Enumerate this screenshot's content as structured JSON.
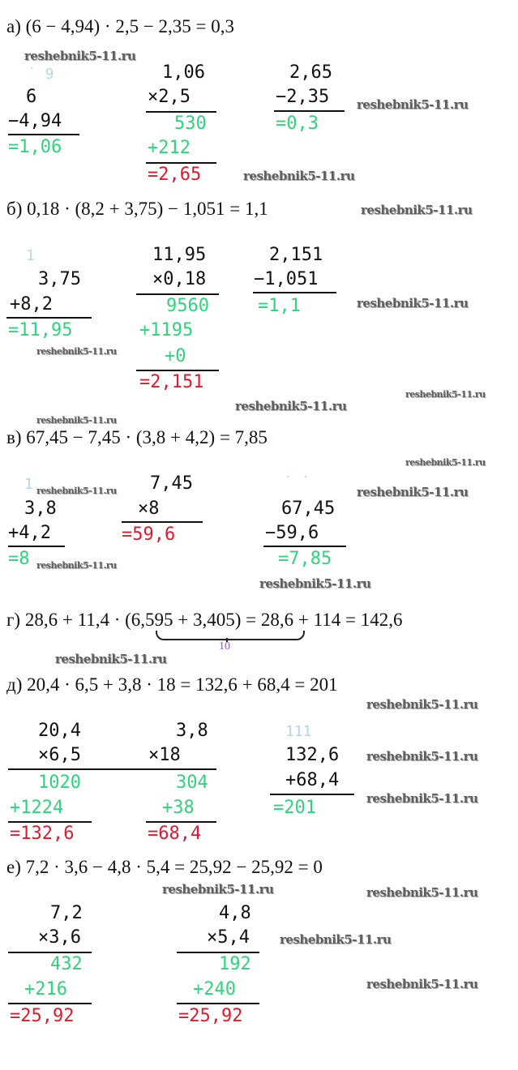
{
  "watermark": "reshebnik5-11.ru",
  "colors": {
    "text": "#111111",
    "intermediate": "#2fd47c",
    "result": "#e01a2e",
    "carry": "#b5d6ea",
    "annotation": "#a050c0"
  },
  "a": {
    "heading": "а) (6 − 4,94) · 2,5 − 2,35 = 0,3",
    "c1": [
      "˙ 9",
      "6",
      "−4,94",
      "=1,06"
    ],
    "c2": [
      "1,06",
      "×2,5",
      "530",
      "+212",
      "=2,65"
    ],
    "c3": [
      "2,65",
      "−2,35",
      "=0,3"
    ]
  },
  "b": {
    "heading": "б) 0,18 · (8,2 + 3,75) − 1,051 = 1,1",
    "c1": [
      "1",
      "3,75",
      "+8,2",
      "=11,95"
    ],
    "c2": [
      "11,95",
      "×0,18",
      "9560",
      "+1195",
      "+0",
      "=2,151"
    ],
    "c3": [
      "2,151",
      "−1,051",
      "=1,1"
    ]
  },
  "v": {
    "heading": "в) 67,45 − 7,45 · (3,8 + 4,2) = 7,85",
    "c1": [
      "1",
      "3,8",
      "+4,2",
      "=8"
    ],
    "c2": [
      "7,45",
      "×8",
      "=59,6"
    ],
    "c3": [
      "˙ ˙",
      "67,45",
      "−59,6",
      "=7,85"
    ]
  },
  "g": {
    "heading": "г) 28,6 + 11,4 · (6,595 + 3,405) = 28,6 + 114 = 142,6",
    "underbrace_value": "10"
  },
  "d": {
    "heading": "д) 20,4 · 6,5 + 3,8 · 18 = 132,6 + 68,4 = 201",
    "c1": [
      "20,4",
      "×6,5",
      "1020",
      "+1224",
      "=132,6"
    ],
    "c2": [
      "3,8",
      "×18",
      "304",
      "+38",
      "=68,4"
    ],
    "c3": [
      "111",
      "132,6",
      "+68,4",
      "=201"
    ]
  },
  "e": {
    "heading": "е) 7,2 · 3,6 − 4,8 · 5,4 = 25,92 − 25,92 = 0",
    "c1": [
      "7,2",
      "×3,6",
      "432",
      "+216",
      "=25,92"
    ],
    "c2": [
      "4,8",
      "×5,4",
      "192",
      "+240",
      "=25,92"
    ]
  }
}
